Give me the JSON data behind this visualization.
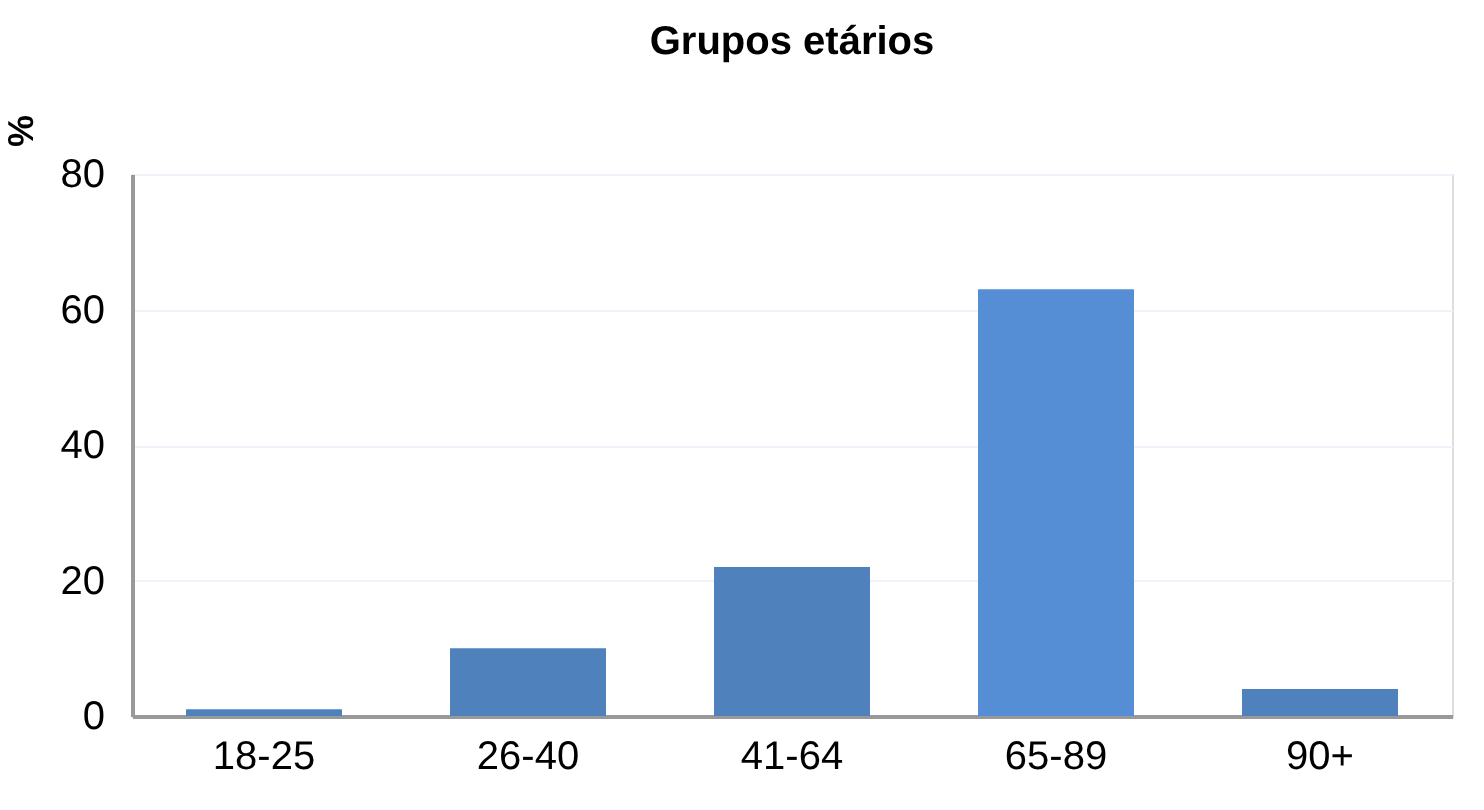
{
  "chart_data": {
    "type": "bar",
    "title": "Grupos etários",
    "ylabel": "%",
    "categories": [
      "18-25",
      "26-40",
      "41-64",
      "65-89",
      "90+"
    ],
    "values": [
      1,
      10,
      22,
      63,
      4
    ],
    "colors": [
      "#4f81bd",
      "#4f81bd",
      "#4f81bd",
      "#558ed5",
      "#4f81bd"
    ],
    "ylim": [
      0,
      80
    ],
    "yticks": [
      0,
      20,
      40,
      60,
      80
    ],
    "grid": "y"
  }
}
